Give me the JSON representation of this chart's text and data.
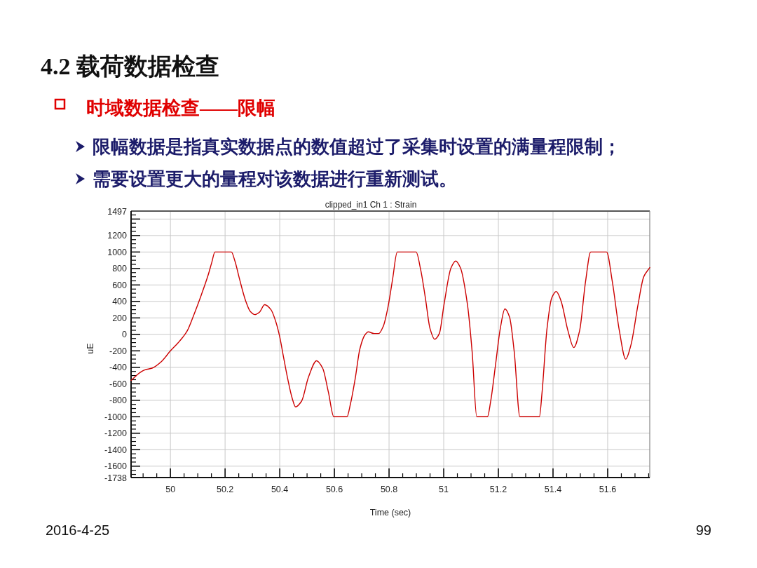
{
  "chart_data": {
    "type": "line",
    "title": "4.2 载荷数据检查",
    "subtitle": "时域数据检查——限幅",
    "annotations": [
      "限幅数据是指真实数据点的数值超过了采集时设置的满量程限制；",
      "需要设置更大的量程对该数据进行重新测试。",
      "clipped_in1 Ch 1 : Strain",
      "2016-4-25",
      "99"
    ],
    "xlabel": "Time (sec)",
    "ylabel": "uE",
    "x": [
      49.856,
      49.89,
      49.907,
      49.933,
      49.967,
      50.0,
      50.026,
      50.044,
      50.061,
      50.086,
      50.112,
      50.138,
      50.151,
      50.163,
      50.223,
      50.236,
      50.253,
      50.275,
      50.292,
      50.309,
      50.326,
      50.345,
      50.368,
      50.385,
      50.4,
      50.413,
      50.428,
      50.446,
      50.458,
      50.48,
      50.505,
      50.535,
      50.557,
      50.578,
      50.598,
      50.646,
      50.659,
      50.677,
      50.693,
      50.711,
      50.724,
      50.745,
      50.762,
      50.779,
      50.796,
      50.813,
      50.83,
      50.899,
      50.916,
      50.933,
      50.95,
      50.967,
      50.984,
      51.001,
      51.027,
      51.044,
      51.061,
      51.087,
      51.104,
      51.121,
      51.16,
      51.172,
      51.19,
      51.207,
      51.224,
      51.241,
      51.258,
      51.279,
      51.35,
      51.36,
      51.378,
      51.395,
      51.412,
      51.429,
      51.455,
      51.476,
      51.497,
      51.519,
      51.538,
      51.596,
      51.617,
      51.643,
      51.666,
      51.685,
      51.711,
      51.732,
      51.754
    ],
    "values": [
      -560,
      -460,
      -430,
      -410,
      -330,
      -200,
      -110,
      -40,
      40,
      240,
      470,
      720,
      870,
      1000,
      1000,
      890,
      670,
      410,
      280,
      240,
      270,
      360,
      300,
      160,
      -30,
      -260,
      -520,
      -780,
      -880,
      -810,
      -520,
      -320,
      -410,
      -700,
      -1000,
      -1000,
      -840,
      -520,
      -180,
      -10,
      30,
      10,
      10,
      100,
      330,
      670,
      1000,
      1000,
      780,
      440,
      70,
      -60,
      10,
      360,
      810,
      890,
      810,
      360,
      -210,
      -1000,
      -1000,
      -810,
      -360,
      70,
      310,
      210,
      -210,
      -1000,
      -1000,
      -700,
      70,
      440,
      520,
      410,
      40,
      -160,
      40,
      640,
      1000,
      1000,
      640,
      40,
      -300,
      -130,
      360,
      700,
      810
    ],
    "color": "#cc0000",
    "xlim": [
      49.856,
      51.754
    ],
    "ylim": [
      -1738,
      1497
    ],
    "xticks": [
      50,
      50.2,
      50.4,
      50.6,
      50.8,
      51,
      51.2,
      51.4,
      51.6
    ],
    "yticks": [
      1497,
      {
        "value": 1400,
        "label": null
      },
      1200,
      1000,
      800,
      600,
      400,
      200,
      0,
      -200,
      -400,
      -600,
      -800,
      -1000,
      -1200,
      -1400,
      -1600,
      -1738
    ],
    "grid": true
  }
}
